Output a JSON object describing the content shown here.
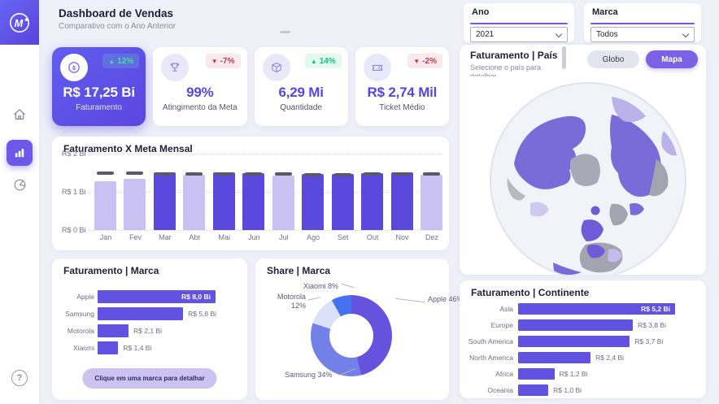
{
  "header": {
    "title": "Dashboard de Vendas",
    "subtitle": "Comparativo com o Ano Anterior",
    "logo_letter": "M"
  },
  "filters": {
    "ano": {
      "label": "Ano",
      "value": "2021"
    },
    "marca": {
      "label": "Marca",
      "value": "Todos"
    }
  },
  "kpis": [
    {
      "label": "Faturamento",
      "value": "R$ 17,25 Bi",
      "delta": "12%",
      "direction": "up",
      "icon": "coin",
      "highlighted": true
    },
    {
      "label": "Atingimento da Meta",
      "value": "99%",
      "delta": "-7%",
      "direction": "down",
      "icon": "trophy",
      "highlighted": false
    },
    {
      "label": "Quantidade",
      "value": "6,29 Mi",
      "delta": "14%",
      "direction": "up",
      "icon": "box",
      "highlighted": false
    },
    {
      "label": "Ticket Médio",
      "value": "R$ 2,74 Mil",
      "delta": "-2%",
      "direction": "down",
      "icon": "ticket",
      "highlighted": false
    }
  ],
  "pais_panel": {
    "title": "Faturamento | País",
    "subtitle": "Selecione o país para",
    "subtitle_clipped": "detalhar",
    "toggle": {
      "globo": "Globo",
      "mapa": "Mapa",
      "active": "Mapa"
    }
  },
  "marca_button": "Clique em uma marca para detalhar",
  "colors": {
    "accent": "#5B49DE",
    "bar_above_meta": "#5B49DE",
    "bar_below_meta": "#C8C1F2",
    "meta_marker": "#5A5A66",
    "positive": "#12C182",
    "negative": "#C03A45",
    "map_country_high": "#7A6CD8",
    "map_country_mid": "#BCB2EA",
    "map_country_none": "#A4A4B0"
  },
  "chart_data": [
    {
      "type": "bar",
      "title": "Faturamento X Meta Mensal",
      "categories": [
        "Jan",
        "Fev",
        "Mar",
        "Abr",
        "Mai",
        "Jun",
        "Jul",
        "Ago",
        "Set",
        "Out",
        "Nov",
        "Dez"
      ],
      "series": [
        {
          "name": "Faturamento",
          "values": [
            1.27,
            1.34,
            1.52,
            1.44,
            1.51,
            1.48,
            1.43,
            1.47,
            1.47,
            1.48,
            1.51,
            1.44
          ]
        },
        {
          "name": "Meta",
          "values": [
            1.48,
            1.48,
            1.47,
            1.46,
            1.47,
            1.46,
            1.47,
            1.45,
            1.45,
            1.46,
            1.47,
            1.46
          ]
        }
      ],
      "unit": "R$ Bi",
      "ylim": [
        0,
        2
      ],
      "yticks": [
        "R$ 2 Bi",
        "R$ 1 Bi",
        "R$ 0 Bi"
      ],
      "grid": "dotted",
      "colors": {
        "above_meta": "#5B49DE",
        "below_meta": "#C8C1F2",
        "meta_marker": "#5A5A66"
      }
    },
    {
      "type": "bar",
      "orientation": "horizontal",
      "title": "Faturamento | Marca",
      "categories": [
        "Apple",
        "Samsung",
        "Motorola",
        "Xiaomi"
      ],
      "values": [
        8.0,
        5.8,
        2.1,
        1.4
      ],
      "value_labels": [
        "R$ 8,0 Bi",
        "R$ 5,8 Bi",
        "R$ 2,1 Bi",
        "R$ 1,4 Bi"
      ],
      "unit": "R$ Bi",
      "bar_color": "#6152E2"
    },
    {
      "type": "donut",
      "title": "Share | Marca",
      "categories": [
        "Apple",
        "Samsung",
        "Motorola",
        "Xiaomi"
      ],
      "values": [
        46,
        34,
        12,
        8
      ],
      "labels": [
        "Apple 46%",
        "Samsung 34%",
        "Motorola 12%",
        "Xiaomi 8%"
      ],
      "colors": [
        "#6553DD",
        "#7380E8",
        "#D9E0F8",
        "#4472EE"
      ]
    },
    {
      "type": "bar",
      "orientation": "horizontal",
      "title": "Faturamento | Continente",
      "categories": [
        "Asia",
        "Europe",
        "South America",
        "North America",
        "Africa",
        "Oceania"
      ],
      "values": [
        5.2,
        3.8,
        3.7,
        2.4,
        1.2,
        1.0
      ],
      "value_labels": [
        "R$ 5,2 Bi",
        "R$ 3,8 Bi",
        "R$ 3,7 Bi",
        "R$ 2,4 Bi",
        "R$ 1,2 Bi",
        "R$ 1,0 Bi"
      ],
      "unit": "R$ Bi",
      "bar_color": "#6152E2"
    }
  ]
}
